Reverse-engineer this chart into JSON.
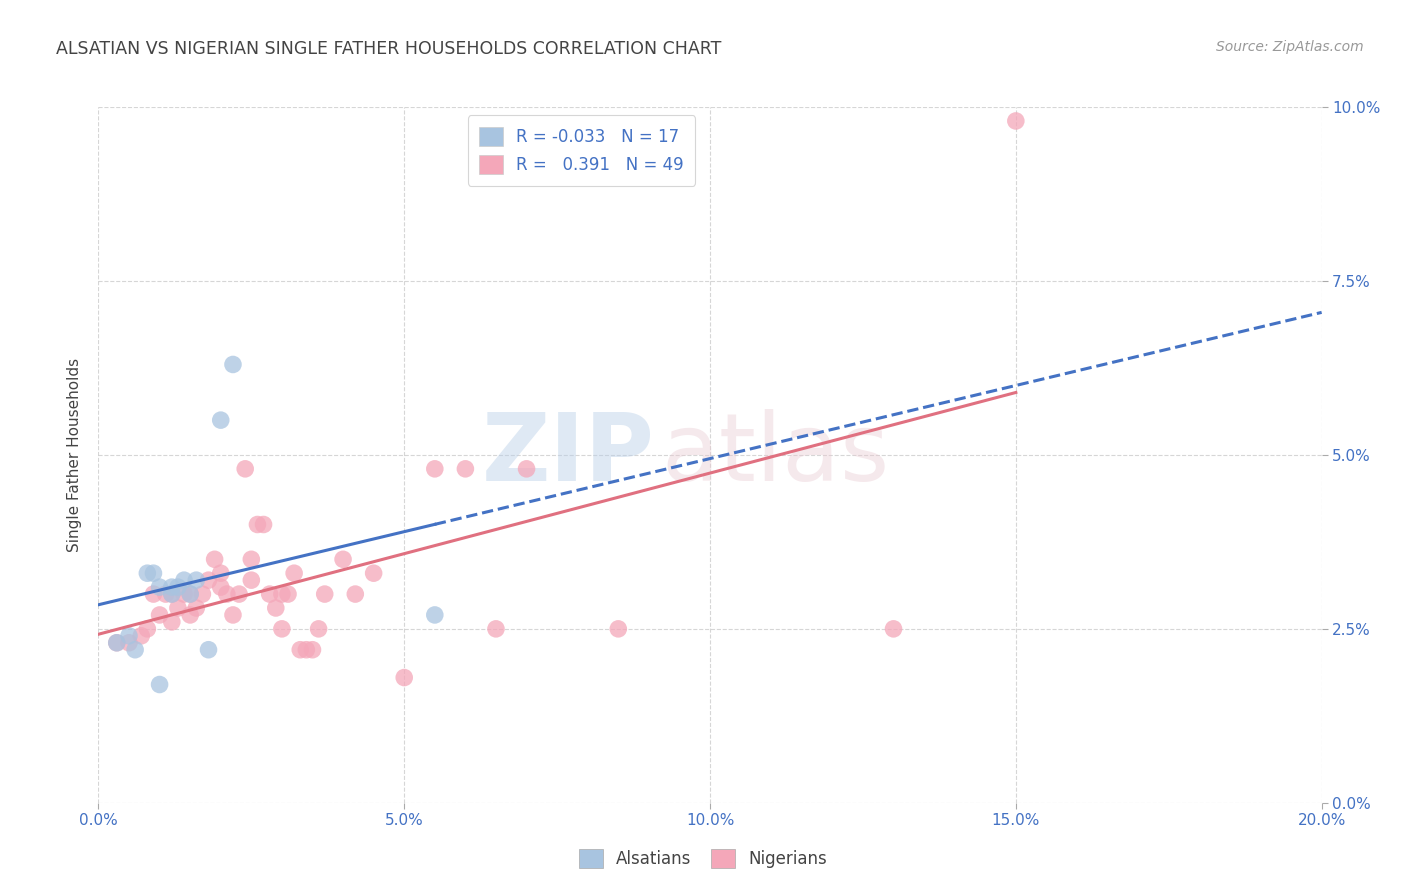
{
  "title": "ALSATIAN VS NIGERIAN SINGLE FATHER HOUSEHOLDS CORRELATION CHART",
  "source": "Source: ZipAtlas.com",
  "xlabel_ticks": [
    "0.0%",
    "5.0%",
    "10.0%",
    "15.0%",
    "20.0%"
  ],
  "xlabel_tick_vals": [
    0.0,
    0.05,
    0.1,
    0.15,
    0.2
  ],
  "ylabel": "Single Father Households",
  "ylabel_ticks": [
    "0.0%",
    "2.5%",
    "5.0%",
    "7.5%",
    "10.0%"
  ],
  "ylabel_tick_vals": [
    0.0,
    0.025,
    0.05,
    0.075,
    0.1
  ],
  "xlim": [
    0.0,
    0.2
  ],
  "ylim": [
    0.0,
    0.1
  ],
  "alsatian_color": "#a8c4e0",
  "nigerian_color": "#f4a7b9",
  "alsatian_line_color": "#4472c4",
  "nigerian_line_color": "#e07080",
  "alsatian_R": -0.033,
  "alsatian_N": 17,
  "nigerian_R": 0.391,
  "nigerian_N": 49,
  "watermark_zip": "ZIP",
  "watermark_atlas": "atlas",
  "alsatian_scatter": [
    [
      0.003,
      0.023
    ],
    [
      0.005,
      0.024
    ],
    [
      0.006,
      0.022
    ],
    [
      0.008,
      0.033
    ],
    [
      0.009,
      0.033
    ],
    [
      0.01,
      0.031
    ],
    [
      0.012,
      0.03
    ],
    [
      0.012,
      0.031
    ],
    [
      0.013,
      0.031
    ],
    [
      0.014,
      0.032
    ],
    [
      0.015,
      0.03
    ],
    [
      0.016,
      0.032
    ],
    [
      0.018,
      0.022
    ],
    [
      0.02,
      0.055
    ],
    [
      0.022,
      0.063
    ],
    [
      0.055,
      0.027
    ],
    [
      0.01,
      0.017
    ]
  ],
  "nigerian_scatter": [
    [
      0.003,
      0.023
    ],
    [
      0.005,
      0.023
    ],
    [
      0.007,
      0.024
    ],
    [
      0.008,
      0.025
    ],
    [
      0.009,
      0.03
    ],
    [
      0.01,
      0.027
    ],
    [
      0.011,
      0.03
    ],
    [
      0.012,
      0.03
    ],
    [
      0.012,
      0.026
    ],
    [
      0.013,
      0.028
    ],
    [
      0.014,
      0.03
    ],
    [
      0.015,
      0.03
    ],
    [
      0.015,
      0.027
    ],
    [
      0.016,
      0.028
    ],
    [
      0.017,
      0.03
    ],
    [
      0.018,
      0.032
    ],
    [
      0.019,
      0.035
    ],
    [
      0.02,
      0.031
    ],
    [
      0.02,
      0.033
    ],
    [
      0.021,
      0.03
    ],
    [
      0.022,
      0.027
    ],
    [
      0.023,
      0.03
    ],
    [
      0.024,
      0.048
    ],
    [
      0.025,
      0.035
    ],
    [
      0.025,
      0.032
    ],
    [
      0.026,
      0.04
    ],
    [
      0.027,
      0.04
    ],
    [
      0.028,
      0.03
    ],
    [
      0.029,
      0.028
    ],
    [
      0.03,
      0.025
    ],
    [
      0.03,
      0.03
    ],
    [
      0.031,
      0.03
    ],
    [
      0.032,
      0.033
    ],
    [
      0.033,
      0.022
    ],
    [
      0.034,
      0.022
    ],
    [
      0.035,
      0.022
    ],
    [
      0.036,
      0.025
    ],
    [
      0.037,
      0.03
    ],
    [
      0.04,
      0.035
    ],
    [
      0.042,
      0.03
    ],
    [
      0.045,
      0.033
    ],
    [
      0.05,
      0.018
    ],
    [
      0.055,
      0.048
    ],
    [
      0.06,
      0.048
    ],
    [
      0.065,
      0.025
    ],
    [
      0.07,
      0.048
    ],
    [
      0.085,
      0.025
    ],
    [
      0.13,
      0.025
    ],
    [
      0.15,
      0.098
    ]
  ],
  "background_color": "#ffffff",
  "grid_color": "#cccccc",
  "title_color": "#444444",
  "axis_label_color": "#4472c4",
  "source_color": "#999999"
}
